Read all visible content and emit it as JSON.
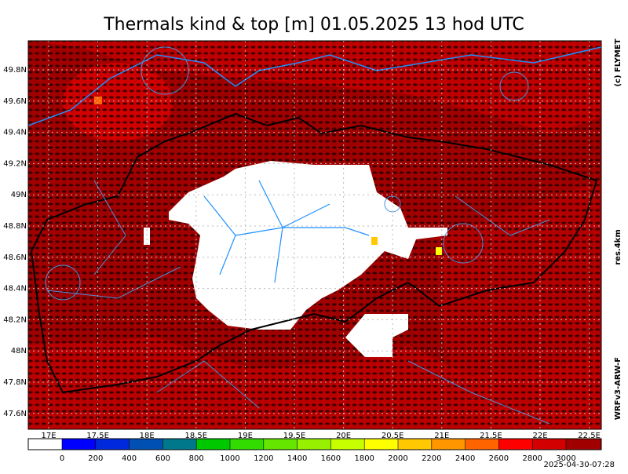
{
  "title": "Thermals kind & top [m]  01.05.2025 13 hod UTC",
  "lat_labels": [
    "49.8N",
    "49.6N",
    "49.4N",
    "49.2N",
    "49N",
    "48.8N",
    "48.6N",
    "48.4N",
    "48.2N",
    "48N",
    "47.8N",
    "47.6N"
  ],
  "lon_labels": [
    "17E",
    "17.5E",
    "18E",
    "18.5E",
    "19E",
    "19.5E",
    "20E",
    "20.5E",
    "21E",
    "21.5E",
    "22E",
    "22.5E"
  ],
  "colorbar": {
    "ticks": [
      0,
      200,
      400,
      600,
      800,
      1000,
      1200,
      1400,
      1600,
      1800,
      2000,
      2200,
      2400,
      2600,
      2800,
      3000
    ],
    "colors": [
      "#ffffff",
      "#0000ff",
      "#0028dc",
      "#0050b4",
      "#00788c",
      "#00c800",
      "#32dc00",
      "#64e600",
      "#96f000",
      "#c8ff00",
      "#ffff00",
      "#ffc800",
      "#ff9600",
      "#ff6400",
      "#ff0000",
      "#d20000",
      "#a00000"
    ]
  },
  "copyright": "(c) FLYMET",
  "resolution": "res.4km",
  "model": "WRFv3-ARW-F",
  "timestamp": "2025-04-30-07:28"
}
